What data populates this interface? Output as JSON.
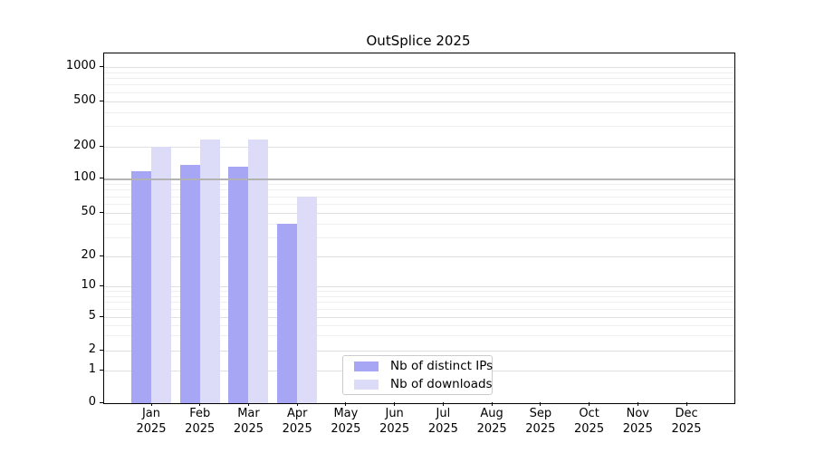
{
  "chart_data": {
    "type": "bar",
    "title": "OutSplice 2025",
    "scale": "symlog",
    "grid": "horizontal",
    "yticks": [
      0,
      1,
      2,
      5,
      10,
      20,
      50,
      100,
      200,
      500,
      1000
    ],
    "ylim": [
      0,
      1300
    ],
    "categories": [
      {
        "month": "Jan",
        "year": "2025"
      },
      {
        "month": "Feb",
        "year": "2025"
      },
      {
        "month": "Mar",
        "year": "2025"
      },
      {
        "month": "Apr",
        "year": "2025"
      },
      {
        "month": "May",
        "year": "2025"
      },
      {
        "month": "Jun",
        "year": "2025"
      },
      {
        "month": "Jul",
        "year": "2025"
      },
      {
        "month": "Aug",
        "year": "2025"
      },
      {
        "month": "Sep",
        "year": "2025"
      },
      {
        "month": "Oct",
        "year": "2025"
      },
      {
        "month": "Nov",
        "year": "2025"
      },
      {
        "month": "Dec",
        "year": "2025"
      }
    ],
    "series": [
      {
        "name": "Nb of distinct IPs",
        "color": "#a6a6f4",
        "values": [
          116,
          135,
          128,
          40,
          0,
          0,
          0,
          0,
          0,
          0,
          0,
          0
        ]
      },
      {
        "name": "Nb of downloads",
        "color": "#dcdcf9",
        "values": [
          200,
          230,
          228,
          70,
          0,
          0,
          0,
          0,
          0,
          0,
          0,
          0
        ]
      }
    ],
    "reference_line": {
      "value": 100,
      "color": "#b3b3b3"
    },
    "legend_position": "bottom-center",
    "colors": {
      "axis": "#000000",
      "grid_major": "#e0e0e0",
      "grid_minor": "#efefef"
    }
  }
}
